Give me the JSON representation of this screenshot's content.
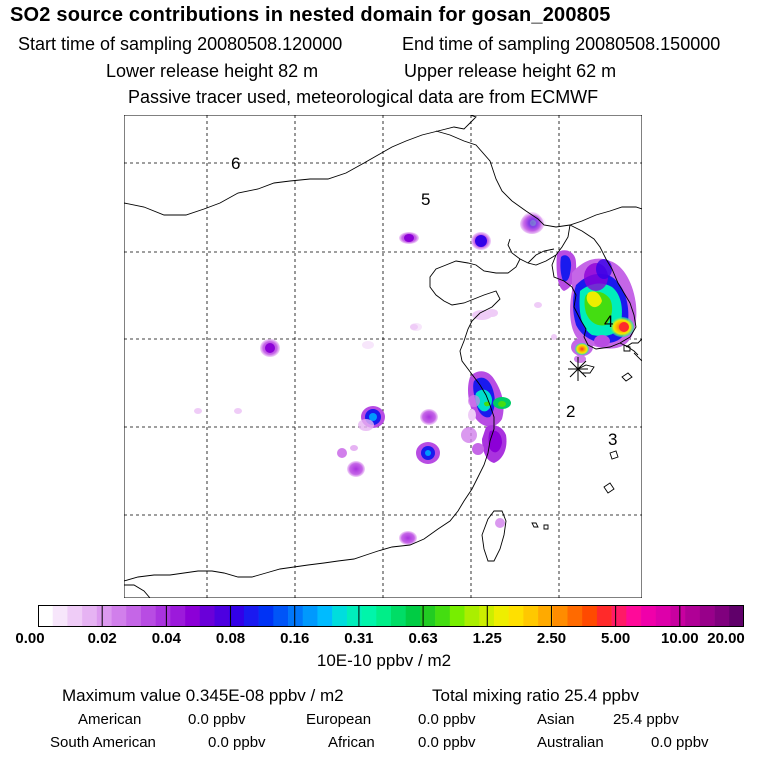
{
  "header": {
    "title": "SO2 source contributions in nested domain for gosan_200805",
    "start_label": "Start time of sampling 20080508.120000",
    "end_label": "End time of sampling 20080508.150000",
    "lower_label": "Lower release height   82 m",
    "upper_label": "Upper release height   62 m",
    "note": "Passive tracer used, meteorological data are from ECMWF"
  },
  "map": {
    "regions": [
      {
        "id": "6",
        "label": "6"
      },
      {
        "id": "5",
        "label": "5"
      },
      {
        "id": "4",
        "label": "4"
      },
      {
        "id": "2",
        "label": "2"
      },
      {
        "id": "3",
        "label": "3"
      }
    ],
    "receptor_marker": "receptor-star-icon"
  },
  "legend": {
    "ticks": [
      "0.00",
      "0.02",
      "0.04",
      "0.08",
      "0.16",
      "0.31",
      "0.63",
      "1.25",
      "2.50",
      "5.00",
      "10.00",
      "20.00"
    ],
    "units": "10E-10 ppbv / m2",
    "colors": [
      "#ffffff",
      "#f7e6fb",
      "#efccf7",
      "#e6b3f3",
      "#dc99ef",
      "#d17feb",
      "#c566e7",
      "#b84ce3",
      "#aa33df",
      "#9c1adb",
      "#8c00d7",
      "#6a00d9",
      "#4d00e0",
      "#3300e8",
      "#1a1af0",
      "#0033f5",
      "#0055f8",
      "#0077fb",
      "#0099fd",
      "#00bbff",
      "#00dddd",
      "#00eebb",
      "#00f5aa",
      "#00ee88",
      "#00dd66",
      "#00cc44",
      "#22cc22",
      "#44dd11",
      "#77ee00",
      "#aaee00",
      "#ccee00",
      "#eeee00",
      "#ffe000",
      "#ffc800",
      "#ffaa00",
      "#ff8c00",
      "#ff6a00",
      "#ff4a00",
      "#ff2a2a",
      "#ff1a66",
      "#ff0a99",
      "#f000aa",
      "#dd00aa",
      "#c800a0",
      "#b00096",
      "#98008a",
      "#80007e",
      "#60006a"
    ]
  },
  "footer": {
    "max_value": "Maximum value  0.345E-08 ppbv / m2",
    "total_mixing": "Total mixing ratio      25.4 ppbv",
    "american_label": "American",
    "american_value": "0.0 ppbv",
    "european_label": "European",
    "european_value": "0.0 ppbv",
    "asian_label": "Asian",
    "asian_value": "25.4 ppbv",
    "south_american_label": "South American",
    "south_american_value": "0.0 ppbv",
    "african_label": "African",
    "african_value": "0.0 ppbv",
    "australian_label": "Australian",
    "australian_value": "0.0 ppbv"
  }
}
